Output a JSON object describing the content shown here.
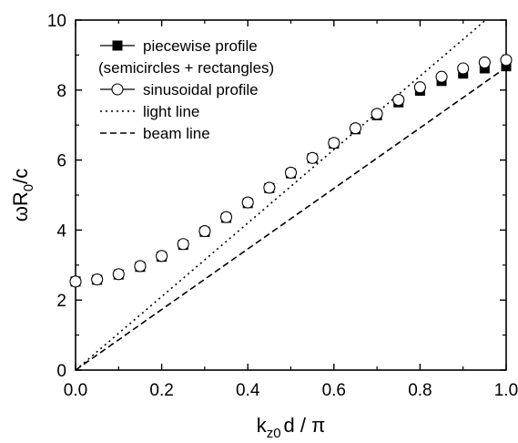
{
  "chart_data": {
    "type": "line",
    "xlabel": {
      "main": "k",
      "sub": "z0",
      "rest": "d / π"
    },
    "ylabel": {
      "main": "ωR",
      "sub": "0",
      "rest": "/c"
    },
    "xlim": [
      0,
      1
    ],
    "ylim": [
      0,
      10
    ],
    "xticks": [
      "0.0",
      "0.2",
      "0.4",
      "0.6",
      "0.8",
      "1.0"
    ],
    "yticks": [
      "0",
      "2",
      "4",
      "6",
      "8",
      "10"
    ],
    "grid": false,
    "legend_position": "top-left",
    "series": [
      {
        "name": "piecewise profile",
        "name_line2": "(semicircles + rectangles)",
        "marker": "filled-square",
        "x": [
          0.0,
          0.05,
          0.1,
          0.15,
          0.2,
          0.25,
          0.3,
          0.35,
          0.4,
          0.45,
          0.5,
          0.55,
          0.6,
          0.65,
          0.7,
          0.75,
          0.8,
          0.85,
          0.9,
          0.95,
          1.0
        ],
        "y": [
          2.53,
          2.58,
          2.73,
          2.95,
          3.24,
          3.58,
          3.95,
          4.35,
          4.77,
          5.2,
          5.62,
          6.05,
          6.47,
          6.88,
          7.28,
          7.65,
          7.98,
          8.26,
          8.47,
          8.62,
          8.68
        ]
      },
      {
        "name": "sinusoidal profile",
        "marker": "open-circle",
        "x": [
          0.0,
          0.05,
          0.1,
          0.15,
          0.2,
          0.25,
          0.3,
          0.35,
          0.4,
          0.45,
          0.5,
          0.55,
          0.6,
          0.65,
          0.7,
          0.75,
          0.8,
          0.85,
          0.9,
          0.95,
          1.0
        ],
        "y": [
          2.53,
          2.59,
          2.74,
          2.97,
          3.26,
          3.6,
          3.97,
          4.37,
          4.79,
          5.21,
          5.64,
          6.06,
          6.49,
          6.91,
          7.32,
          7.72,
          8.08,
          8.38,
          8.62,
          8.79,
          8.86
        ]
      },
      {
        "name": "light line",
        "style": "dotted",
        "x": [
          0,
          1
        ],
        "y": [
          0,
          10.5
        ]
      },
      {
        "name": "beam line",
        "style": "dashed",
        "x": [
          0,
          1
        ],
        "y": [
          0,
          8.65
        ]
      }
    ]
  }
}
